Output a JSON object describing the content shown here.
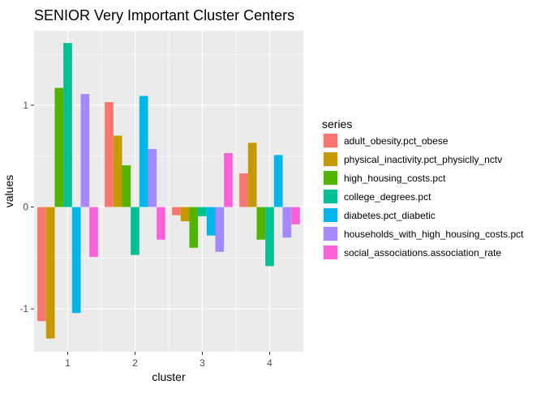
{
  "chart_data": {
    "type": "bar",
    "title": "SENIOR Very Important Cluster Centers",
    "xlabel": "cluster",
    "ylabel": "values",
    "categories": [
      "1",
      "2",
      "3",
      "4"
    ],
    "yticks": [
      -1,
      0,
      1
    ],
    "ylim": [
      -1.42,
      1.73
    ],
    "grid": true,
    "legend": {
      "title": "series",
      "position": "right"
    },
    "series": [
      {
        "name": "adult_obesity.pct_obese",
        "color": "#F8766D",
        "values": [
          -1.12,
          1.03,
          -0.08,
          0.33
        ]
      },
      {
        "name": "physical_inactivity.pct_physiclly_nctv",
        "color": "#C49A00",
        "values": [
          -1.29,
          0.7,
          -0.14,
          0.63
        ]
      },
      {
        "name": "high_housing_costs.pct",
        "color": "#53B400",
        "values": [
          1.17,
          0.41,
          -0.4,
          -0.32
        ]
      },
      {
        "name": "college_degrees.pct",
        "color": "#00C094",
        "values": [
          1.61,
          -0.47,
          -0.09,
          -0.58
        ]
      },
      {
        "name": "diabetes.pct_diabetic",
        "color": "#00B6EB",
        "values": [
          -1.04,
          1.09,
          -0.28,
          0.51
        ]
      },
      {
        "name": "households_with_high_housing_costs.pct",
        "color": "#A58AFF",
        "values": [
          1.11,
          0.57,
          -0.44,
          -0.3
        ]
      },
      {
        "name": "social_associations.association_rate",
        "color": "#FB61D7",
        "values": [
          -0.49,
          -0.32,
          0.53,
          -0.17
        ]
      }
    ]
  }
}
